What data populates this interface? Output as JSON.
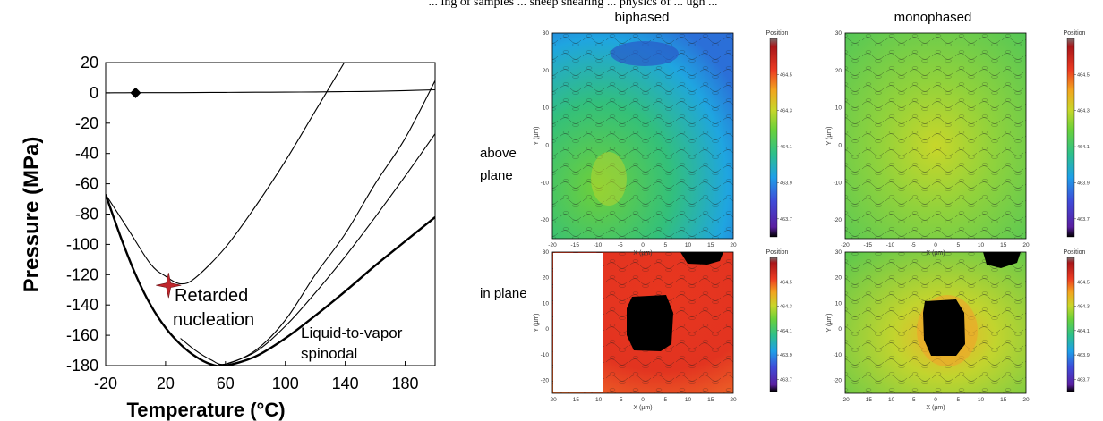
{
  "caption_fragment": "... ing of samples ... sheep shearing ... physics of ... ugh ...",
  "chart_data": [
    {
      "type": "line",
      "title": "",
      "xlabel": "Temperature (°C)",
      "ylabel": "Pressure (MPa)",
      "xlim": [
        -20,
        200
      ],
      "ylim": [
        -180,
        20
      ],
      "xticks": [
        -20,
        20,
        60,
        100,
        140,
        180
      ],
      "yticks": [
        20,
        0,
        -20,
        -40,
        -60,
        -80,
        -100,
        -120,
        -140,
        -160,
        -180
      ],
      "grid": false,
      "series": [
        {
          "style": "thin",
          "x": [
            -20,
            0,
            20,
            40,
            60,
            80,
            100,
            120,
            140,
            160,
            180,
            200
          ],
          "y": [
            0.0,
            0.1,
            0.1,
            0.2,
            0.3,
            0.4,
            0.5,
            0.6,
            0.8,
            1.0,
            1.5,
            2.0
          ]
        },
        {
          "style": "thick",
          "x": [
            -20,
            -10,
            0,
            10,
            20,
            30,
            40,
            50,
            60,
            80,
            100,
            120,
            140,
            160,
            180,
            200
          ],
          "y": [
            -67,
            -95,
            -120,
            -140,
            -155,
            -166,
            -174,
            -179,
            -180,
            -174,
            -162,
            -147,
            -131,
            -114,
            -98,
            -82
          ]
        },
        {
          "style": "thin",
          "x": [
            -20,
            -5,
            10,
            20,
            30,
            40,
            60,
            80,
            100,
            120,
            140
          ],
          "y": [
            -67,
            -90,
            -113,
            -121,
            -126,
            -122,
            -102,
            -75,
            -45,
            -12,
            21
          ]
        },
        {
          "style": "thin",
          "x": [
            30,
            40,
            50,
            60,
            80,
            100,
            120,
            140,
            160,
            180,
            200
          ],
          "y": [
            -162,
            -170,
            -176,
            -179,
            -170,
            -150,
            -120,
            -93,
            -60,
            -30,
            8
          ]
        },
        {
          "style": "thin",
          "x": [
            55,
            60,
            80,
            100,
            120,
            140,
            160,
            180,
            200
          ],
          "y": [
            -179,
            -179,
            -171,
            -154,
            -132,
            -108,
            -82,
            -55,
            -27
          ]
        }
      ],
      "markers": [
        {
          "shape": "diamond",
          "x": 0,
          "y": 0,
          "color": "#000000"
        },
        {
          "shape": "star",
          "x": 22,
          "y": -127,
          "color": "#c0262c"
        }
      ],
      "annotations": [
        "Retarded nucleation",
        "Liquid-to-vapor spinodal"
      ]
    },
    {
      "type": "heatmap",
      "columns": [
        "biphased",
        "monophased"
      ],
      "rows": [
        "above plane",
        "in plane"
      ],
      "xlabel": "X (µm)",
      "ylabel": "Y (µm)",
      "xticks": [
        -20,
        -15,
        -10,
        -5,
        0,
        5,
        10,
        15,
        20
      ],
      "yticks": [
        30,
        20,
        10,
        0,
        -10,
        -20
      ],
      "xlim": [
        -20,
        20
      ],
      "ylim": [
        -25,
        30
      ],
      "colorbar_title": "Position",
      "colorbar_ticks": [
        464.5,
        464.3,
        464.1,
        463.9,
        463.7
      ],
      "colorbar_range": [
        463.6,
        464.7
      ],
      "panels": [
        {
          "row": "above plane",
          "column": "biphased",
          "mean_value": 464.05,
          "dominant_color": "#33c066"
        },
        {
          "row": "above plane",
          "column": "monophased",
          "mean_value": 464.18,
          "dominant_color": "#8fd23c"
        },
        {
          "row": "in plane",
          "column": "biphased",
          "mean_value": 464.55,
          "dominant_color": "#e8281e",
          "blank_region": true
        },
        {
          "row": "in plane",
          "column": "monophased",
          "mean_value": 464.2,
          "dominant_color": "#a5d43a"
        }
      ]
    }
  ],
  "labels": {
    "col_biphased": "biphased",
    "col_monophased": "monophased",
    "row_above1": "above",
    "row_above2": "plane",
    "row_in": "in plane",
    "annot_retarded1": "Retarded",
    "annot_retarded2": "nucleation",
    "annot_spinodal1": "Liquid-to-vapor",
    "annot_spinodal2": "spinodal"
  },
  "colors": {
    "heat_scale": [
      "#000000",
      "#5a1fa0",
      "#3f4bd8",
      "#1e9fe8",
      "#2ec08a",
      "#6ad13a",
      "#c8d62a",
      "#f2a51f",
      "#ec3b22",
      "#a8161a",
      "#7a6f6f"
    ]
  }
}
